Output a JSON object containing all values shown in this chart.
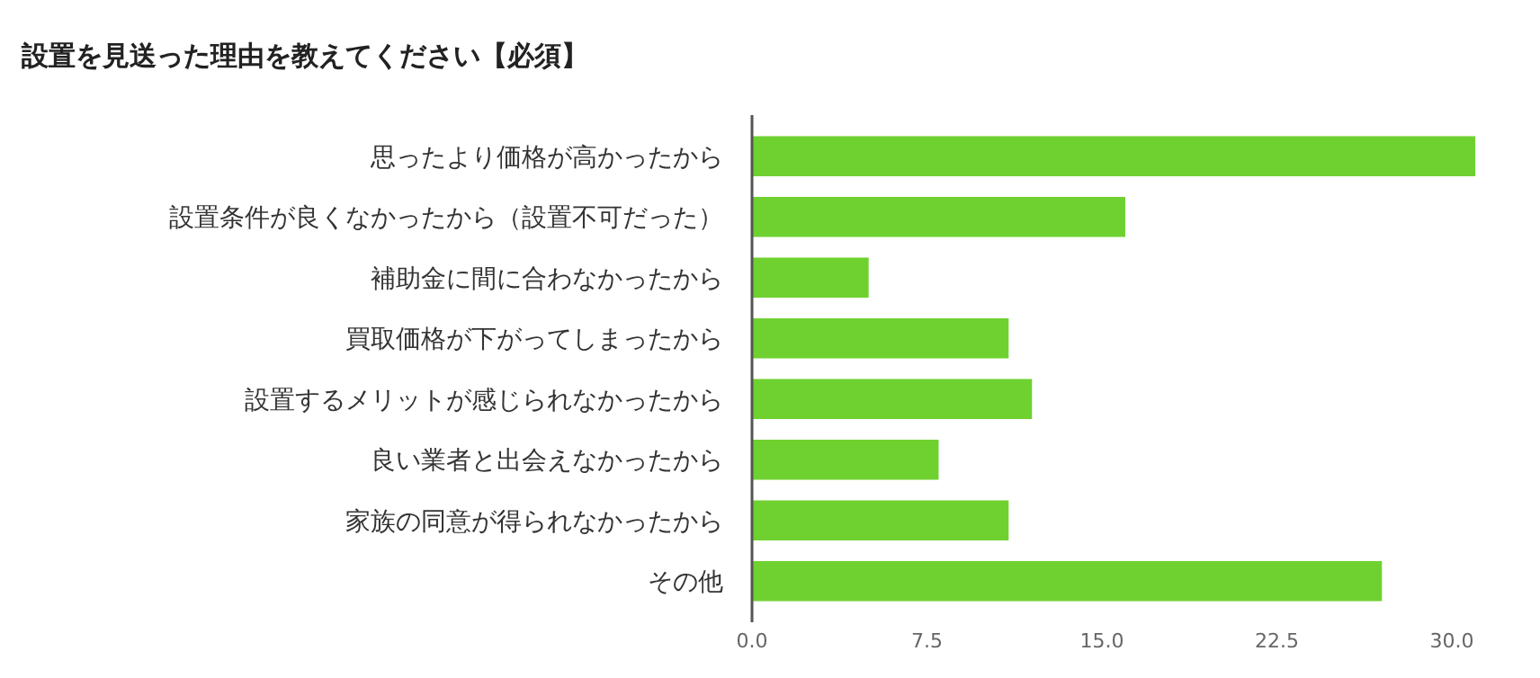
{
  "chart_data": {
    "type": "bar",
    "orientation": "horizontal",
    "title": "設置を見送った理由を教えてください【必須】",
    "categories": [
      "思ったより価格が高かったから",
      "設置条件が良くなかったから（設置不可だった）",
      "補助金に間に合わなかったから",
      "買取価格が下がってしまったから",
      "設置するメリットが感じられなかったから",
      "良い業者と出会えなかったから",
      "家族の同意が得られなかったから",
      "その他"
    ],
    "values": [
      31,
      16,
      5,
      11,
      12,
      8,
      11,
      27
    ],
    "color": "#6fd130",
    "xlim": [
      0,
      31
    ],
    "xticks": [
      {
        "value": 0,
        "label": "0.0"
      },
      {
        "value": 7.5,
        "label": "7.5"
      },
      {
        "value": 15,
        "label": "15.0"
      },
      {
        "value": 22.5,
        "label": "22.5"
      },
      {
        "value": 30,
        "label": "30.0"
      }
    ],
    "grid": false
  }
}
